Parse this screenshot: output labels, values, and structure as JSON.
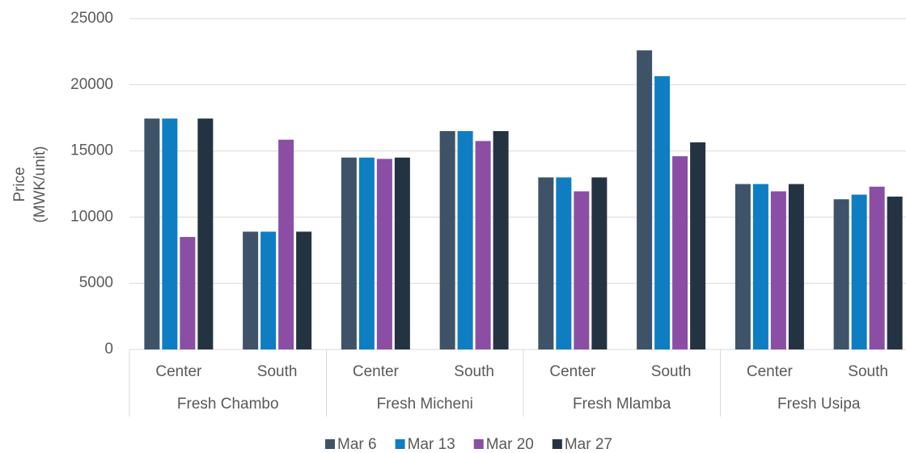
{
  "chart_data": {
    "type": "bar",
    "y_label": [
      "Price",
      "(MWK/unit)"
    ],
    "groups": [
      "Fresh Chambo",
      "Fresh Micheni",
      "Fresh Mlamba",
      "Fresh Usipa"
    ],
    "categories": [
      "Center",
      "South",
      "Center",
      "South",
      "Center",
      "South",
      "Center",
      "South"
    ],
    "series": [
      {
        "name": "Mar 6",
        "color": "#3e5368",
        "values": [
          17450,
          8900,
          14500,
          16500,
          13000,
          22600,
          12500,
          11350
        ]
      },
      {
        "name": "Mar 13",
        "color": "#0f7dc2",
        "values": [
          17450,
          8900,
          14500,
          16500,
          13000,
          20650,
          12500,
          11700
        ]
      },
      {
        "name": "Mar 20",
        "color": "#8a4ea5",
        "values": [
          8500,
          15850,
          14400,
          15750,
          11950,
          14600,
          11950,
          12300
        ]
      },
      {
        "name": "Mar 27",
        "color": "#243342",
        "values": [
          17450,
          8900,
          14500,
          16500,
          13000,
          15650,
          12500,
          11550
        ]
      }
    ],
    "ylim": [
      0,
      25000
    ],
    "yticks": [
      0,
      5000,
      10000,
      15000,
      20000,
      25000
    ],
    "grid": true,
    "legend": "bottom"
  }
}
